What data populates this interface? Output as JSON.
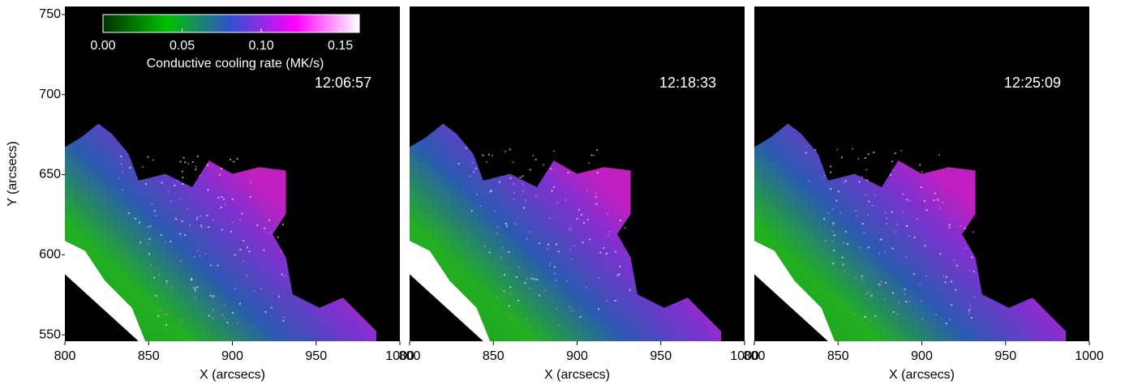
{
  "chart_data": [
    {
      "type": "image",
      "title": "12:06:57",
      "xlabel": "X (arcsecs)",
      "ylabel": "Y (arcsecs)",
      "xlim": [
        800,
        1000
      ],
      "ylim": [
        546,
        755
      ],
      "xticks": [
        800,
        850,
        900,
        950,
        1000
      ],
      "yticks": [
        550,
        600,
        650,
        700,
        750
      ],
      "colorbar": {
        "label": "Conductive cooling rate (MK/s)",
        "lim": [
          0,
          0.162
        ],
        "ticks": [
          {
            "value": 0,
            "label": "0.00"
          },
          {
            "value": 0.05,
            "label": "0.05"
          },
          {
            "value": 0.1,
            "label": "0.10"
          },
          {
            "value": 0.15,
            "label": "0.15"
          }
        ],
        "colors": [
          "#003000",
          "#00c000",
          "#3050d0",
          "#ff00ff",
          "#ffffff"
        ]
      }
    },
    {
      "type": "image",
      "title": "12:18:33",
      "xlabel": "X (arcsecs)",
      "xlim": [
        800,
        1000
      ],
      "ylim": [
        546,
        755
      ],
      "xticks": [
        800,
        850,
        900,
        950,
        1000
      ]
    },
    {
      "type": "image",
      "title": "12:25:09",
      "xlabel": "X (arcsecs)",
      "xlim": [
        800,
        1000
      ],
      "ylim": [
        546,
        755
      ],
      "xticks": [
        800,
        850,
        900,
        950,
        1000
      ]
    }
  ]
}
